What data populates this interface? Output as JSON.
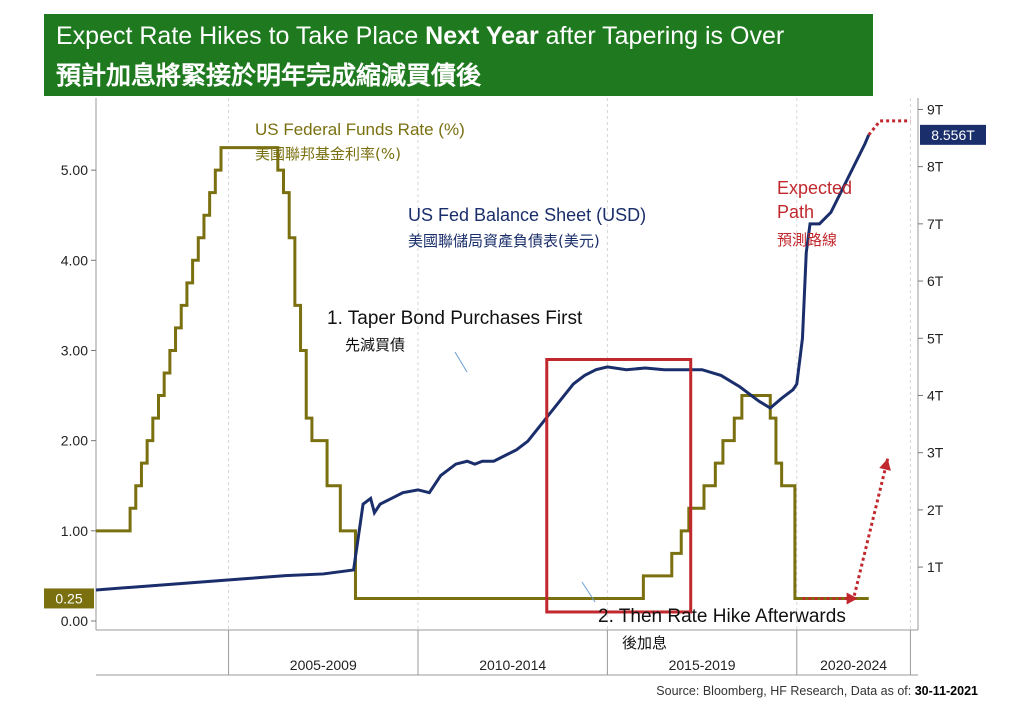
{
  "banner": {
    "title_en_1": "Expect Rate Hikes to Take Place ",
    "title_en_bold": "Next Year",
    "title_en_2": " after Tapering is Over",
    "title_zh": "預計加息將緊接於明年完成縮減買債後",
    "background": "#1f7a1f"
  },
  "annotations": {
    "ffr_en": "US Federal Funds Rate (%)",
    "ffr_zh": "美國聯邦基金利率(%)",
    "bs_en": "US Fed Balance Sheet (USD)",
    "bs_zh": "美國聯儲局資產負債表(美元)",
    "expected_en_1": "Expected",
    "expected_en_2": "Path",
    "expected_zh": "預測路線",
    "step1_en": "1. Taper Bond Purchases First",
    "step1_zh": "先減買債",
    "step2_en": "2. Then Rate Hike Afterwards",
    "step2_zh": "後加息"
  },
  "source": {
    "prefix": "Source: Bloomberg, HF Research, Data as of: ",
    "date": "30-11-2021"
  },
  "colors": {
    "ffr": "#7a7010",
    "balance_sheet": "#1a2e6b",
    "expected": "#c0282d",
    "highlight_box": "#c0282d"
  },
  "chart_data": {
    "type": "line",
    "x_axis": {
      "range": [
        2001.5,
        2023.2
      ],
      "tick_labels": [
        "2005-2009",
        "2010-2014",
        "2015-2019",
        "2020-2024"
      ]
    },
    "y_left": {
      "label": "US Federal Funds Rate (%)",
      "range": [
        -0.1,
        5.8
      ],
      "ticks": [
        "0.00",
        "1.00",
        "2.00",
        "3.00",
        "4.00",
        "5.00"
      ],
      "last_value_tag": "0.25"
    },
    "y_right": {
      "label": "US Fed Balance Sheet (USD)",
      "range": [
        -0.1,
        9.2
      ],
      "ticks": [
        "1T",
        "2T",
        "3T",
        "4T",
        "5T",
        "6T",
        "7T",
        "8T",
        "9T"
      ],
      "last_value_tag": "8.556T"
    },
    "series": [
      {
        "name": "US Federal Funds Rate (%)",
        "axis": "left",
        "step": true,
        "x": [
          2001.5,
          2002.4,
          2002.55,
          2002.7,
          2002.85,
          2003.0,
          2003.15,
          2003.3,
          2003.45,
          2003.6,
          2003.75,
          2003.9,
          2004.05,
          2004.2,
          2004.35,
          2004.5,
          2004.65,
          2004.8,
          2004.95,
          2005.1,
          2005.25,
          2005.4,
          2006.3,
          2006.45,
          2006.6,
          2006.75,
          2006.9,
          2007.05,
          2007.2,
          2007.6,
          2007.95,
          2008.35,
          2015.2,
          2015.95,
          2016.7,
          2016.95,
          2017.15,
          2017.55,
          2017.85,
          2018.05,
          2018.35,
          2018.55,
          2018.75,
          2019.3,
          2019.45,
          2019.6,
          2019.95,
          2020.15,
          2021.9
        ],
        "y": [
          1.0,
          1.25,
          1.5,
          1.75,
          2.0,
          2.25,
          2.5,
          2.75,
          3.0,
          3.25,
          3.5,
          3.75,
          4.0,
          4.25,
          4.5,
          4.75,
          5.0,
          5.25,
          5.25,
          5.25,
          5.25,
          5.25,
          5.0,
          4.75,
          4.25,
          3.5,
          3.0,
          2.25,
          2.0,
          1.5,
          1.0,
          0.25,
          0.25,
          0.5,
          0.75,
          1.0,
          1.25,
          1.5,
          1.75,
          2.0,
          2.25,
          2.5,
          2.5,
          2.25,
          1.75,
          1.5,
          0.25,
          0.25,
          0.25
        ]
      },
      {
        "name": "US Fed Balance Sheet (USD)",
        "axis": "right",
        "x": [
          2001.5,
          2002.5,
          2003.5,
          2004.5,
          2005.5,
          2006.5,
          2007.5,
          2008.3,
          2008.55,
          2008.75,
          2008.85,
          2009.0,
          2009.3,
          2009.6,
          2010.0,
          2010.3,
          2010.6,
          2011.0,
          2011.3,
          2011.5,
          2011.7,
          2012.0,
          2012.3,
          2012.6,
          2012.9,
          2013.2,
          2013.5,
          2013.8,
          2014.1,
          2014.4,
          2014.7,
          2015.0,
          2015.5,
          2016.0,
          2016.5,
          2017.0,
          2017.5,
          2018.0,
          2018.5,
          2019.0,
          2019.3,
          2019.6,
          2019.9,
          2020.0,
          2020.15,
          2020.25,
          2020.35,
          2020.6,
          2020.9,
          2021.2,
          2021.5,
          2021.8,
          2021.9
        ],
        "y": [
          0.6,
          0.65,
          0.7,
          0.75,
          0.8,
          0.85,
          0.88,
          0.95,
          2.1,
          2.2,
          1.95,
          2.1,
          2.2,
          2.3,
          2.35,
          2.3,
          2.6,
          2.8,
          2.85,
          2.8,
          2.85,
          2.85,
          2.95,
          3.05,
          3.2,
          3.45,
          3.7,
          3.95,
          4.2,
          4.35,
          4.45,
          4.5,
          4.45,
          4.48,
          4.45,
          4.45,
          4.45,
          4.35,
          4.15,
          3.9,
          3.78,
          3.95,
          4.1,
          4.2,
          5.0,
          6.5,
          7.0,
          7.0,
          7.2,
          7.6,
          8.0,
          8.4,
          8.556
        ]
      }
    ],
    "expected_path": {
      "name": "Expected Path",
      "balance_sheet": {
        "x": [
          2021.9,
          2022.2,
          2023.0
        ],
        "y": [
          8.556,
          8.8,
          8.8
        ]
      },
      "rate": {
        "x": [
          2020.15,
          2021.5
        ],
        "y": [
          0.25,
          0.25
        ],
        "arrow_to": {
          "x": 2022.4,
          "y": 1.8
        }
      }
    },
    "highlight_box": {
      "x_range": [
        2013.4,
        2017.2
      ],
      "y_range": [
        0.1,
        2.9
      ]
    }
  }
}
